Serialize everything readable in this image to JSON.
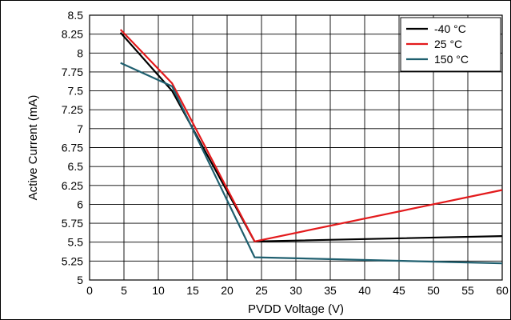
{
  "chart_data": {
    "type": "line",
    "title": "",
    "xlabel": "PVDD Voltage (V)",
    "ylabel": "Active Current (mA)",
    "xlim": [
      0,
      60
    ],
    "ylim": [
      5,
      8.5
    ],
    "xticks": [
      0,
      5,
      10,
      15,
      20,
      25,
      30,
      35,
      40,
      45,
      50,
      55,
      60
    ],
    "yticks": [
      5,
      5.25,
      5.5,
      5.75,
      6,
      6.25,
      6.5,
      6.75,
      7,
      7.25,
      7.5,
      7.75,
      8,
      8.25,
      8.5
    ],
    "xtick_labels": [
      "0",
      "5",
      "10",
      "15",
      "20",
      "25",
      "30",
      "35",
      "40",
      "45",
      "50",
      "55",
      "60"
    ],
    "ytick_labels": [
      "5",
      "5.25",
      "5.5",
      "5.75",
      "6",
      "6.25",
      "6.5",
      "6.75",
      "7",
      "7.25",
      "7.5",
      "7.75",
      "8",
      "8.25",
      "8.5"
    ],
    "grid": true,
    "legend_position": "top-right",
    "series": [
      {
        "name": "-40 °C",
        "color": "#000000",
        "x": [
          4.5,
          12,
          24,
          60
        ],
        "y": [
          8.27,
          7.5,
          5.51,
          5.58
        ]
      },
      {
        "name": "25 °C",
        "color": "#e31a1c",
        "x": [
          4.5,
          12,
          24,
          60
        ],
        "y": [
          8.31,
          7.6,
          5.51,
          6.19
        ]
      },
      {
        "name": "150 °C",
        "color": "#1f5f6f",
        "x": [
          4.5,
          12,
          24,
          60
        ],
        "y": [
          7.87,
          7.56,
          5.3,
          5.22
        ]
      }
    ]
  }
}
